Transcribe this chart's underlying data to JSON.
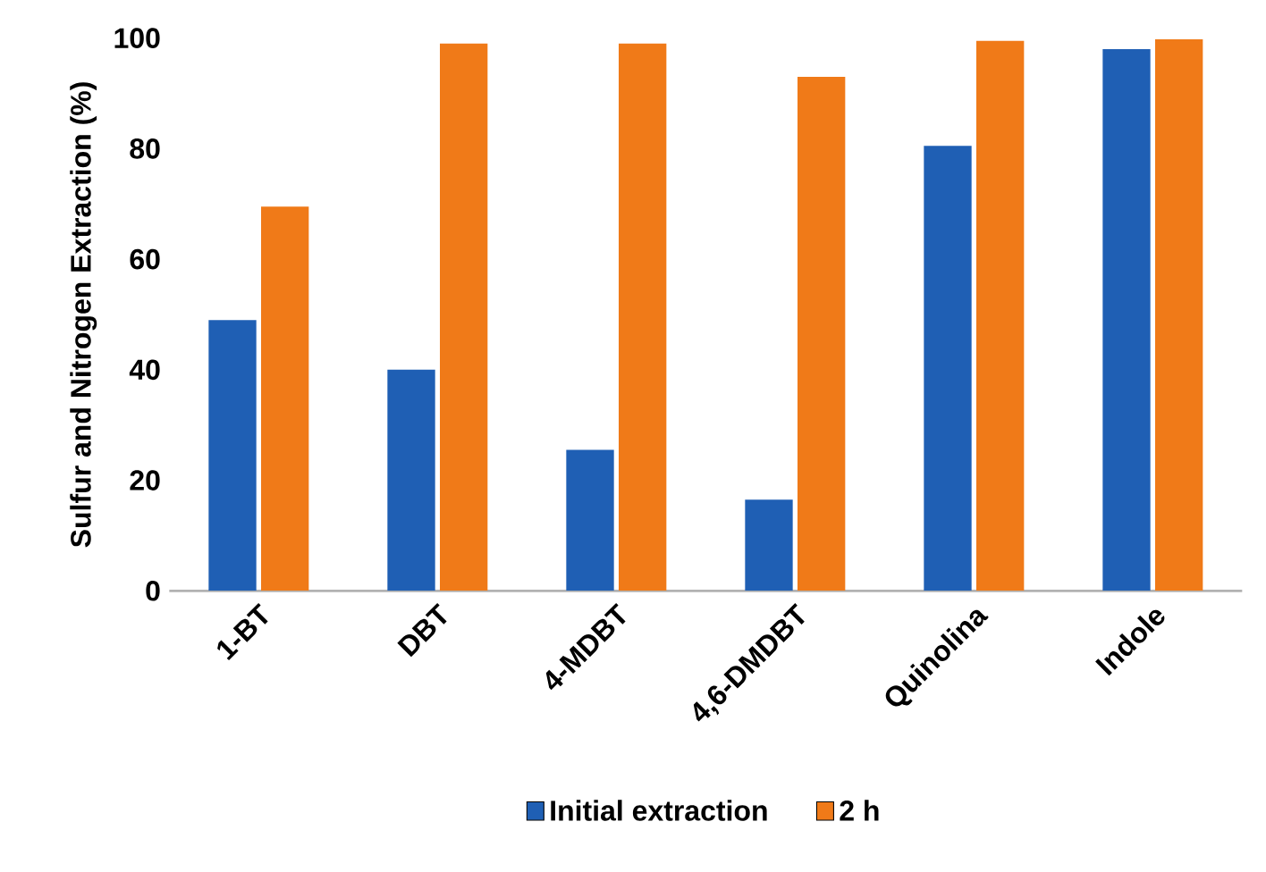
{
  "chart_data": {
    "type": "bar",
    "ylabel": "Sulfur and Nitrogen Extraction (%)",
    "categories": [
      "1-BT",
      "DBT",
      "4-MDBT",
      "4,6-DMDBT",
      "Quinolina",
      "Indole"
    ],
    "series": [
      {
        "name": "Initial extraction",
        "color": "#1f5fb4",
        "values": [
          49,
          40,
          25.5,
          16.5,
          80.5,
          98
        ]
      },
      {
        "name": "2 h",
        "color": "#f07a18",
        "values": [
          69.5,
          99,
          99,
          93,
          99.5,
          99.8
        ]
      }
    ],
    "ylim": [
      0,
      100
    ],
    "yticks": [
      0,
      20,
      40,
      60,
      80,
      100
    ],
    "legend": "bottom"
  }
}
